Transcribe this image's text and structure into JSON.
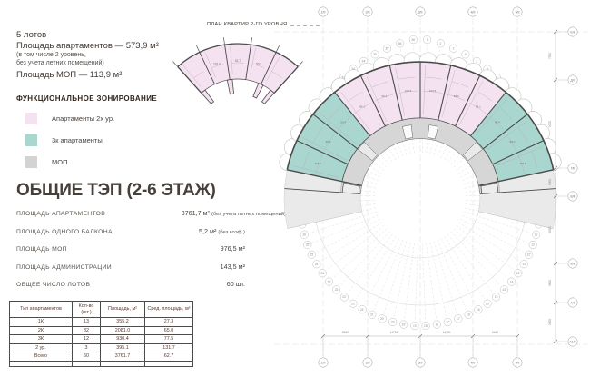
{
  "info": {
    "line1": "5 лотов",
    "line2": "Площадь апартаментов — 573,9 м²",
    "line3": "(в том числе 2 уровень,",
    "line4": "без учета летних помещений)",
    "line5": "Площадь МОП — 113,9 м²"
  },
  "legend": {
    "title": "ФУНКЦИОНАЛЬНОЕ ЗОНИРОВАНИЕ",
    "items": [
      {
        "label": "Апартаменты 2х ур.",
        "color": "#f5e2f1"
      },
      {
        "label": "3к апартаменты",
        "color": "#a9d6ce"
      },
      {
        "label": "МОП",
        "color": "#d3d3d3"
      }
    ]
  },
  "tep": {
    "title": "ОБЩИЕ ТЭП (2-6 ЭТАЖ)",
    "rows": [
      {
        "label": "ПЛОЩАДЬ АПАРТАМЕНТОВ",
        "value": "3761,7 м²",
        "note": "(без учета летних помещений)"
      },
      {
        "label": "ПЛОЩАДЬ ОДНОГО БАЛКОНА",
        "value": "5,2 м²",
        "note": "(без коэф.)"
      },
      {
        "label": "ПЛОЩАДЬ МОП",
        "value": "976,5 м²",
        "note": ""
      },
      {
        "label": "ПЛОЩАДЬ АДМИНИСТРАЦИИ",
        "value": "143,5 м²",
        "note": ""
      },
      {
        "label": "ОБЩЕЕ ЧИСЛО ЛОТОВ",
        "value": "60 шт.",
        "note": ""
      }
    ]
  },
  "table": {
    "headers": [
      "Тип апартаментов",
      "Кол-во (шт.)",
      "Площадь, м²",
      "Сред. площадь, м²"
    ],
    "rows": [
      [
        "1К",
        "13",
        "355.2",
        "27.3"
      ],
      [
        "2К",
        "32",
        "2081.0",
        "65.0"
      ],
      [
        "3К",
        "12",
        "930.4",
        "77.5"
      ],
      [
        "2 ур.",
        "3",
        "395.1",
        "131.7"
      ],
      [
        "Всего",
        "60",
        "3761.7",
        "62.7"
      ]
    ]
  },
  "small_plan": {
    "title": "ПЛАН КВАРТИР 2-ГО УРОВНЯ",
    "unit_labels": [
      "",
      "118.4",
      "52.7",
      "59.3",
      ""
    ]
  },
  "main_plan": {
    "radial_labels": [
      "1",
      "1'",
      "2",
      "2'",
      "3",
      "3'",
      "4",
      "4'",
      "5",
      "5'",
      "6",
      "6'",
      "7",
      "7'",
      "8",
      "8'",
      "9",
      "9'",
      "10",
      "10'",
      "11",
      "11'",
      "12",
      "12'",
      "13",
      "13'",
      "14",
      "14'",
      "15",
      "15'",
      "16",
      "16'",
      "17",
      "17'",
      "18",
      "18'",
      "19",
      "19'",
      "20",
      "20'",
      "21",
      "21'",
      "22",
      "22'",
      "23",
      "23'",
      "24",
      "24'",
      "25",
      "25'",
      "26",
      "26'",
      "27",
      "27'",
      "28",
      "28'",
      "29",
      "29'",
      "30",
      "30'",
      "31",
      "31'",
      "32",
      "32'",
      "33",
      "33'",
      "34",
      "34'",
      "35",
      "35'",
      "36",
      "36'"
    ],
    "top_axis_labels": [
      "1/II",
      "2/II",
      "3/II",
      "4/II",
      "5/II"
    ],
    "bottom_axis_labels": [
      "1/II",
      "2/II",
      "3/II",
      "4/II",
      "5/II"
    ],
    "right_axis_labels": [
      "Е/II",
      "Д/II",
      "Г/II",
      "В/II",
      "Б/II",
      "А/II",
      "А1/II"
    ],
    "bottom_dims": [
      "8640",
      "14700",
      "14700",
      "8640"
    ],
    "right_dims": [
      "7500",
      "9000",
      "9000",
      "9000",
      "3600",
      "9000"
    ],
    "unit_labels": [
      "118.6",
      "99.2",
      "90.4",
      "84.1",
      "59.3",
      "104.5",
      "104.5",
      "59.3",
      "84.1",
      "90.4",
      "99.2",
      "118.6"
    ],
    "colors": {
      "duplex": "#f5e2f1",
      "three_room": "#a9d6ce",
      "mop": "#d6d6d6",
      "mop_light": "#eaeaea",
      "wall": "#4b4b4b"
    }
  }
}
